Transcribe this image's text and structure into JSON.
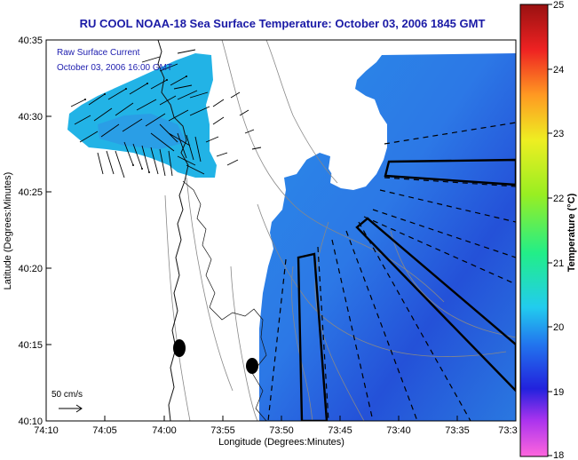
{
  "map": {
    "title": "RU COOL  NOAA-18  Sea Surface Temperature:  October 03, 2006 1845 GMT",
    "overlay_line1": "Raw Surface Current",
    "overlay_line2": "October 03, 2006 16:00 GMT",
    "scale_label": "50 cm/s",
    "xlabel": "Longitude (Degrees:Minutes)",
    "ylabel": "Latitude (Degrees:Minutes)",
    "x_ticks": [
      "74:10",
      "74:05",
      "74:00",
      "73:55",
      "73:50",
      "73:45",
      "73:40",
      "73:35",
      "73:3"
    ],
    "y_ticks": [
      "40:35",
      "40:30",
      "40:25",
      "40:20",
      "40:15",
      "40:10"
    ]
  },
  "colorbar": {
    "title": "Temperature (°C)",
    "min": 18,
    "max": 25,
    "labels": [
      "25",
      "24",
      "23",
      "22",
      "21",
      "20",
      "19",
      "18"
    ]
  },
  "colors": {
    "title": "#1a1aa6",
    "sst_warm": "#19b8e6",
    "sst_cool": "#1f5de0",
    "land": "#ffffff"
  }
}
